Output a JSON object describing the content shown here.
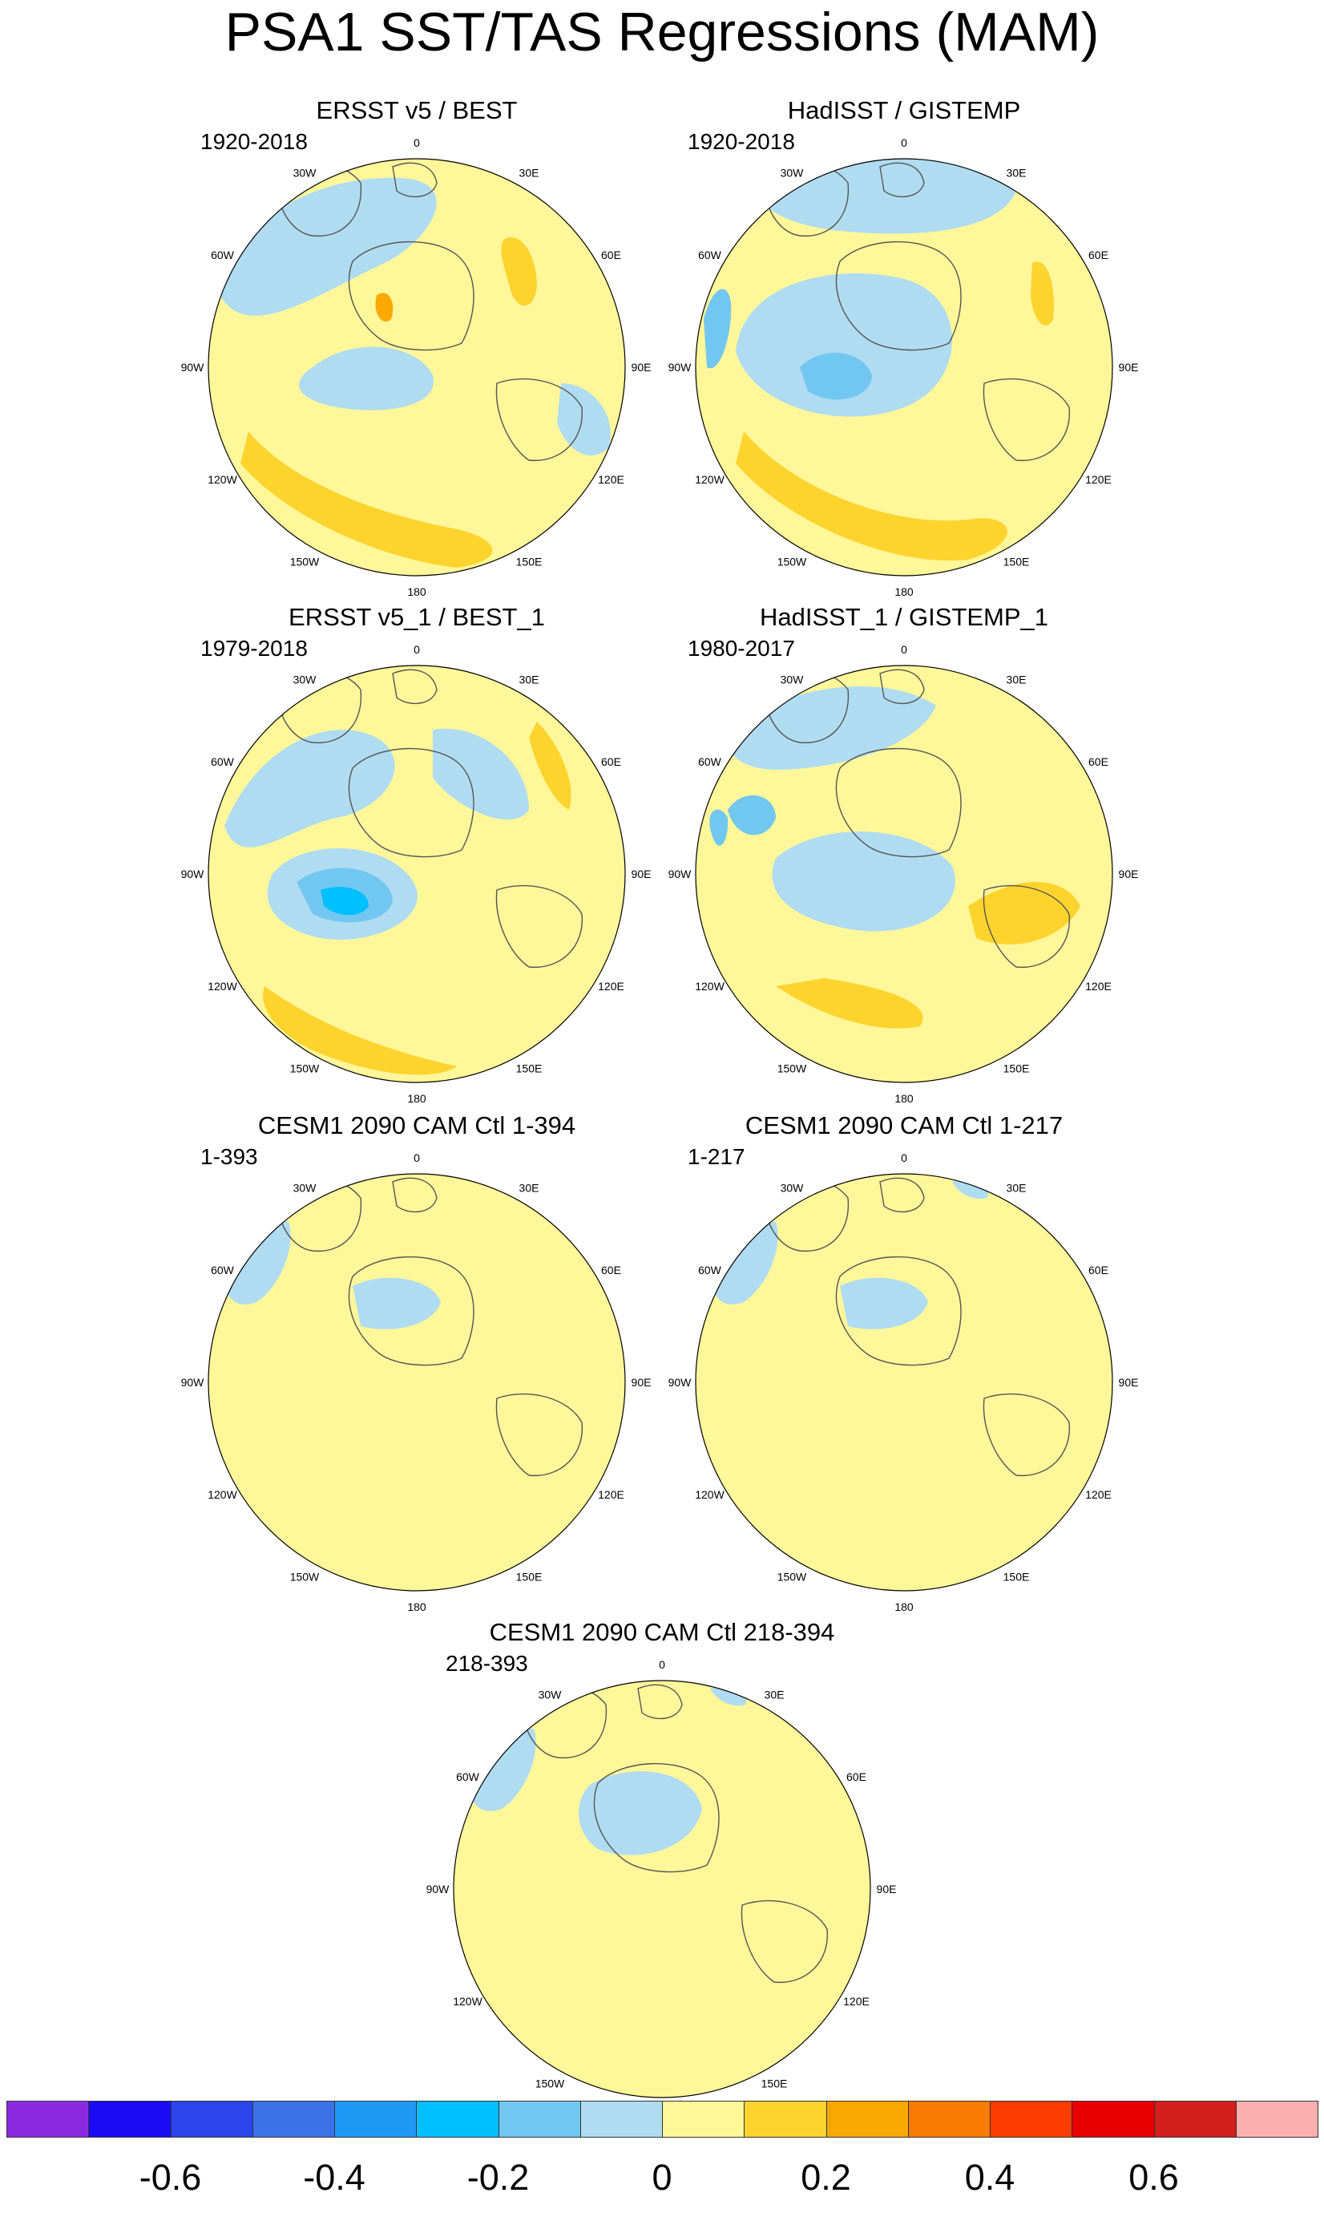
{
  "title": "PSA1 SST/TAS Regressions (MAM)",
  "lon_labels": [
    "0",
    "30E",
    "60E",
    "90E",
    "120E",
    "150E",
    "180",
    "150W",
    "120W",
    "90W",
    "60W",
    "30W"
  ],
  "panels": [
    {
      "title": "ERSST v5 / BEST",
      "period": "1920-2018"
    },
    {
      "title": "HadISST / GISTEMP",
      "period": "1920-2018"
    },
    {
      "title": "ERSST v5_1 / BEST_1",
      "period": "1979-2018"
    },
    {
      "title": "HadISST_1 / GISTEMP_1",
      "period": "1980-2017"
    },
    {
      "title": "CESM1 2090 CAM Ctl 1-394",
      "period": "1-393"
    },
    {
      "title": "CESM1 2090 CAM Ctl 1-217",
      "period": "1-217"
    },
    {
      "title": "CESM1 2090 CAM Ctl 218-394",
      "period": "218-393"
    }
  ],
  "colorbar": {
    "colors": [
      "#8a2be2",
      "#1a0cf5",
      "#2b44eb",
      "#3b72e8",
      "#1e9af5",
      "#00c0ff",
      "#72c7f0",
      "#b0dcf2",
      "#fff799",
      "#fdd42d",
      "#fba800",
      "#fb7a00",
      "#fc3b00",
      "#e80000",
      "#d41f1f",
      "#fbb0b0"
    ],
    "tick_labels": [
      "-0.6",
      "-0.4",
      "-0.2",
      "0",
      "0.2",
      "0.4",
      "0.6"
    ],
    "tick_values": [
      -0.6,
      -0.4,
      -0.2,
      0,
      0.2,
      0.4,
      0.6
    ]
  }
}
